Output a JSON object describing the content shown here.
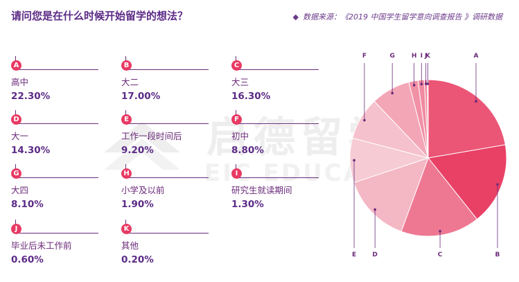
{
  "title": "请问您是在什么时候开始留学的想法？",
  "source": "数据来源：《2019 中国学生留学意向调查报告 》调研数据",
  "watermark_cn": "启德留学",
  "watermark_en": "EIC EDUCATION",
  "chart_data": {
    "type": "pie",
    "title": "请问您是在什么时候开始留学的想法？",
    "slices": [
      {
        "key": "A",
        "label": "高中",
        "value": 22.3,
        "display": "22.30%"
      },
      {
        "key": "B",
        "label": "大二",
        "value": 17.0,
        "display": "17.00%"
      },
      {
        "key": "C",
        "label": "大三",
        "value": 16.3,
        "display": "16.30%"
      },
      {
        "key": "D",
        "label": "大一",
        "value": 14.3,
        "display": "14.30%"
      },
      {
        "key": "E",
        "label": "工作一段时间后",
        "value": 9.2,
        "display": "9.20%"
      },
      {
        "key": "F",
        "label": "初中",
        "value": 8.8,
        "display": "8.80%"
      },
      {
        "key": "G",
        "label": "大四",
        "value": 8.1,
        "display": "8.10%"
      },
      {
        "key": "H",
        "label": "小学及以前",
        "value": 1.9,
        "display": "1.90%"
      },
      {
        "key": "I",
        "label": "研究生就读期间",
        "value": 1.3,
        "display": "1.30%"
      },
      {
        "key": "J",
        "label": "毕业后未工作前",
        "value": 0.6,
        "display": "0.60%"
      },
      {
        "key": "K",
        "label": "其他",
        "value": 0.2,
        "display": "0.20%"
      }
    ],
    "colors": {
      "start": "#e8345c",
      "end": "#f7d3da",
      "edge": "#ffffff"
    }
  }
}
